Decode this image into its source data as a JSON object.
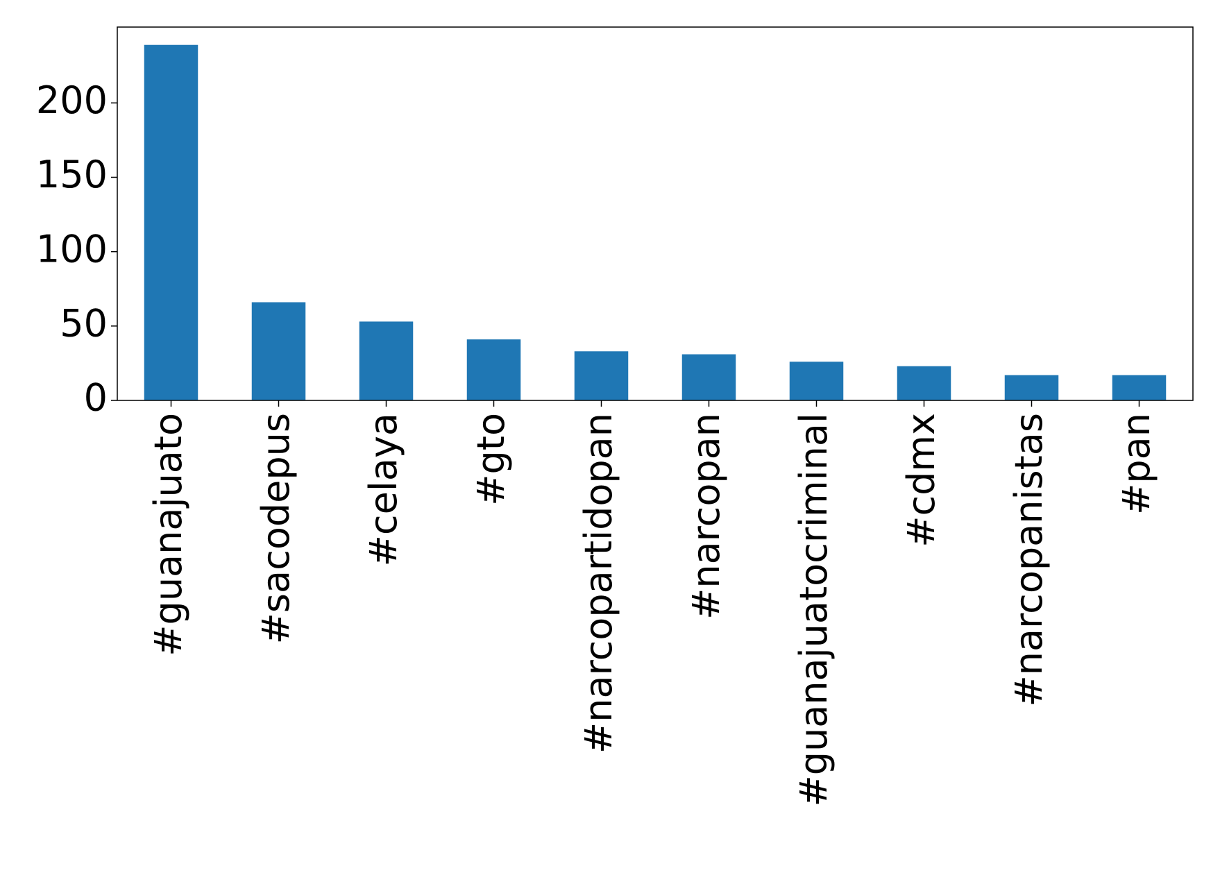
{
  "chart_data": {
    "type": "bar",
    "categories": [
      "#guanajuato",
      "#sacodepus",
      "#celaya",
      "#gto",
      "#narcopartidopan",
      "#narcopan",
      "#guanajuatocriminal",
      "#cdmx",
      "#narcopanistas",
      "#pan"
    ],
    "values": [
      239,
      66,
      53,
      41,
      33,
      31,
      26,
      23,
      17,
      17
    ],
    "color": "#1f77b4",
    "ylim": [
      0,
      251
    ],
    "yticks": [
      0,
      50,
      100,
      150,
      200
    ],
    "grid": false
  }
}
